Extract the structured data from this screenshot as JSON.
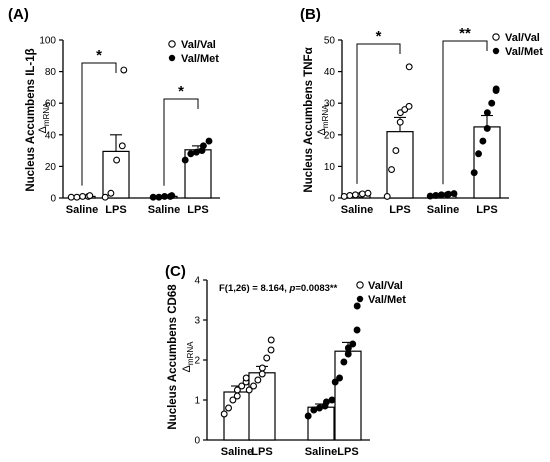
{
  "chart_data": [
    {
      "type": "bar",
      "panel_label": "(A)",
      "ylabel": "Nucleus Accumbens IL-1β",
      "ylabel_sub": "Δ",
      "ylabel_subscript": "mRNA",
      "ylim": [
        0,
        100
      ],
      "yticks": [
        "0",
        "20",
        "40",
        "60",
        "80",
        "100"
      ],
      "categories": [
        "Saline",
        "LPS",
        "Saline",
        "LPS"
      ],
      "series": [
        {
          "name": "Val/Val",
          "marker": "open",
          "means": [
            1,
            29.5
          ],
          "sem": [
            0.5,
            10.5
          ],
          "points": [
            [
              0.5,
              0.5,
              1,
              1,
              1.5
            ],
            [
              0.5,
              3,
              24,
              33,
              81
            ]
          ]
        },
        {
          "name": "Val/Met",
          "marker": "filled",
          "means": [
            1,
            30.5
          ],
          "sem": [
            0.4,
            2.5
          ],
          "points": [
            [
              0.5,
              0.5,
              1,
              1,
              1.5
            ],
            [
              24,
              28,
              29,
              30,
              33,
              36
            ]
          ]
        }
      ],
      "significance": [
        {
          "label": "*",
          "series": "Val/Val"
        },
        {
          "label": "*",
          "series": "Val/Met"
        }
      ]
    },
    {
      "type": "bar",
      "panel_label": "(B)",
      "ylabel": "Nucleus Accumbens TNFα",
      "ylabel_sub": "Δ",
      "ylabel_subscript": "mRNA",
      "ylim": [
        0,
        50
      ],
      "yticks": [
        "0",
        "10",
        "20",
        "30",
        "40",
        "50"
      ],
      "categories": [
        "Saline",
        "LPS",
        "Saline",
        "LPS"
      ],
      "series": [
        {
          "name": "Val/Val",
          "marker": "open",
          "means": [
            1,
            21
          ],
          "sem": [
            0.3,
            4.5
          ],
          "points": [
            [
              0.5,
              0.8,
              1,
              1,
              1.3,
              1.5
            ],
            [
              0.5,
              9,
              15,
              24,
              27,
              28,
              29,
              41.5
            ]
          ]
        },
        {
          "name": "Val/Met",
          "marker": "filled",
          "means": [
            1,
            22.5
          ],
          "sem": [
            0.2,
            3.6
          ],
          "points": [
            [
              0.6,
              0.8,
              1,
              1,
              1.2,
              1.4
            ],
            [
              8,
              14,
              18,
              22,
              27,
              30,
              34,
              34.5
            ]
          ]
        }
      ],
      "significance": [
        {
          "label": "*",
          "series": "Val/Val"
        },
        {
          "label": "**",
          "series": "Val/Met"
        }
      ]
    },
    {
      "type": "bar",
      "panel_label": "(C)",
      "ylabel": "Nucleus Accumbens CD68",
      "ylabel_sub": "Δ",
      "ylabel_subscript": "mRNA",
      "ylim": [
        0,
        4
      ],
      "yticks": [
        "0",
        "1",
        "2",
        "3",
        "4"
      ],
      "categories": [
        "Saline",
        "LPS",
        "Saline",
        "LPS"
      ],
      "annotation_text": "F(1,26) = 8.164, ",
      "annotation_p": "p",
      "annotation_tail": "=0.0083**",
      "series": [
        {
          "name": "Val/Val",
          "marker": "open",
          "means": [
            1.2,
            1.68
          ],
          "sem": [
            0.15,
            0.16
          ],
          "points": [
            [
              0.65,
              0.8,
              1.0,
              1.1,
              1.25,
              1.35,
              1.45,
              1.55
            ],
            [
              1.25,
              1.35,
              1.5,
              1.65,
              1.8,
              2.05,
              2.25,
              2.5
            ]
          ]
        },
        {
          "name": "Val/Met",
          "marker": "filled",
          "means": [
            0.82,
            2.22
          ],
          "sem": [
            0.08,
            0.22
          ],
          "points": [
            [
              0.6,
              0.75,
              0.8,
              0.85,
              0.95,
              1.0
            ],
            [
              1.45,
              1.55,
              1.95,
              2.15,
              2.3,
              2.4,
              2.75,
              3.35
            ]
          ]
        }
      ]
    }
  ]
}
